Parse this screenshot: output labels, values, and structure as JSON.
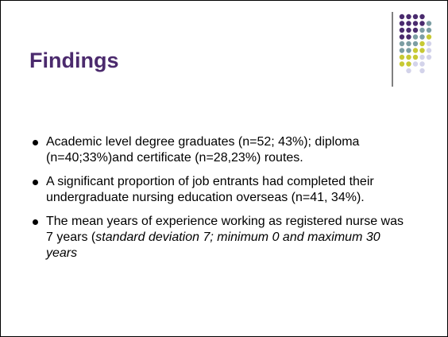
{
  "header": {
    "title": "Findings"
  },
  "bullets": [
    "Academic level degree graduates (n=52; 43%); diploma (n=40;33%)and certificate (n=28,23%) routes.",
    "A significant proportion of job entrants had completed their undergraduate nursing education overseas (n=41, 34%).",
    {
      "text": "The mean years of experience working as registered nurse was 7 years (",
      "italic": "standard deviation 7; minimum 0 and maximum 30 years"
    }
  ]
}
